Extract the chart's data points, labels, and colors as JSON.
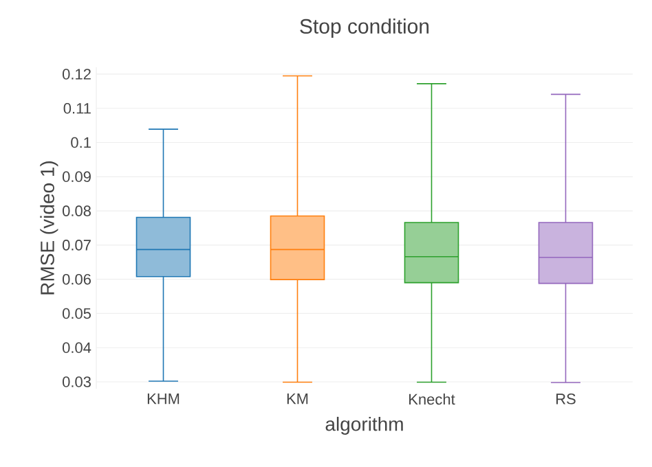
{
  "chart_data": {
    "type": "box",
    "title": "Stop condition",
    "xlabel": "algorithm",
    "ylabel": "RMSE (video 1)",
    "categories": [
      "KHM",
      "KM",
      "Knecht",
      "RS"
    ],
    "boxes": [
      {
        "low": 0.0302,
        "q1": 0.0608,
        "median": 0.0687,
        "q3": 0.0781,
        "high": 0.1039
      },
      {
        "low": 0.0299,
        "q1": 0.0599,
        "median": 0.0687,
        "q3": 0.0785,
        "high": 0.1195
      },
      {
        "low": 0.0299,
        "q1": 0.059,
        "median": 0.0666,
        "q3": 0.0766,
        "high": 0.1172
      },
      {
        "low": 0.0298,
        "q1": 0.0588,
        "median": 0.0664,
        "q3": 0.0766,
        "high": 0.1141
      }
    ],
    "colors": [
      "#1f77b4",
      "#ff7f0e",
      "#2ca02c",
      "#9467bd"
    ],
    "ylim": [
      0.028,
      0.122
    ],
    "yticks": [
      0.03,
      0.04,
      0.05,
      0.06,
      0.07,
      0.08,
      0.09,
      0.1,
      0.11,
      0.12
    ],
    "grid": "y"
  }
}
